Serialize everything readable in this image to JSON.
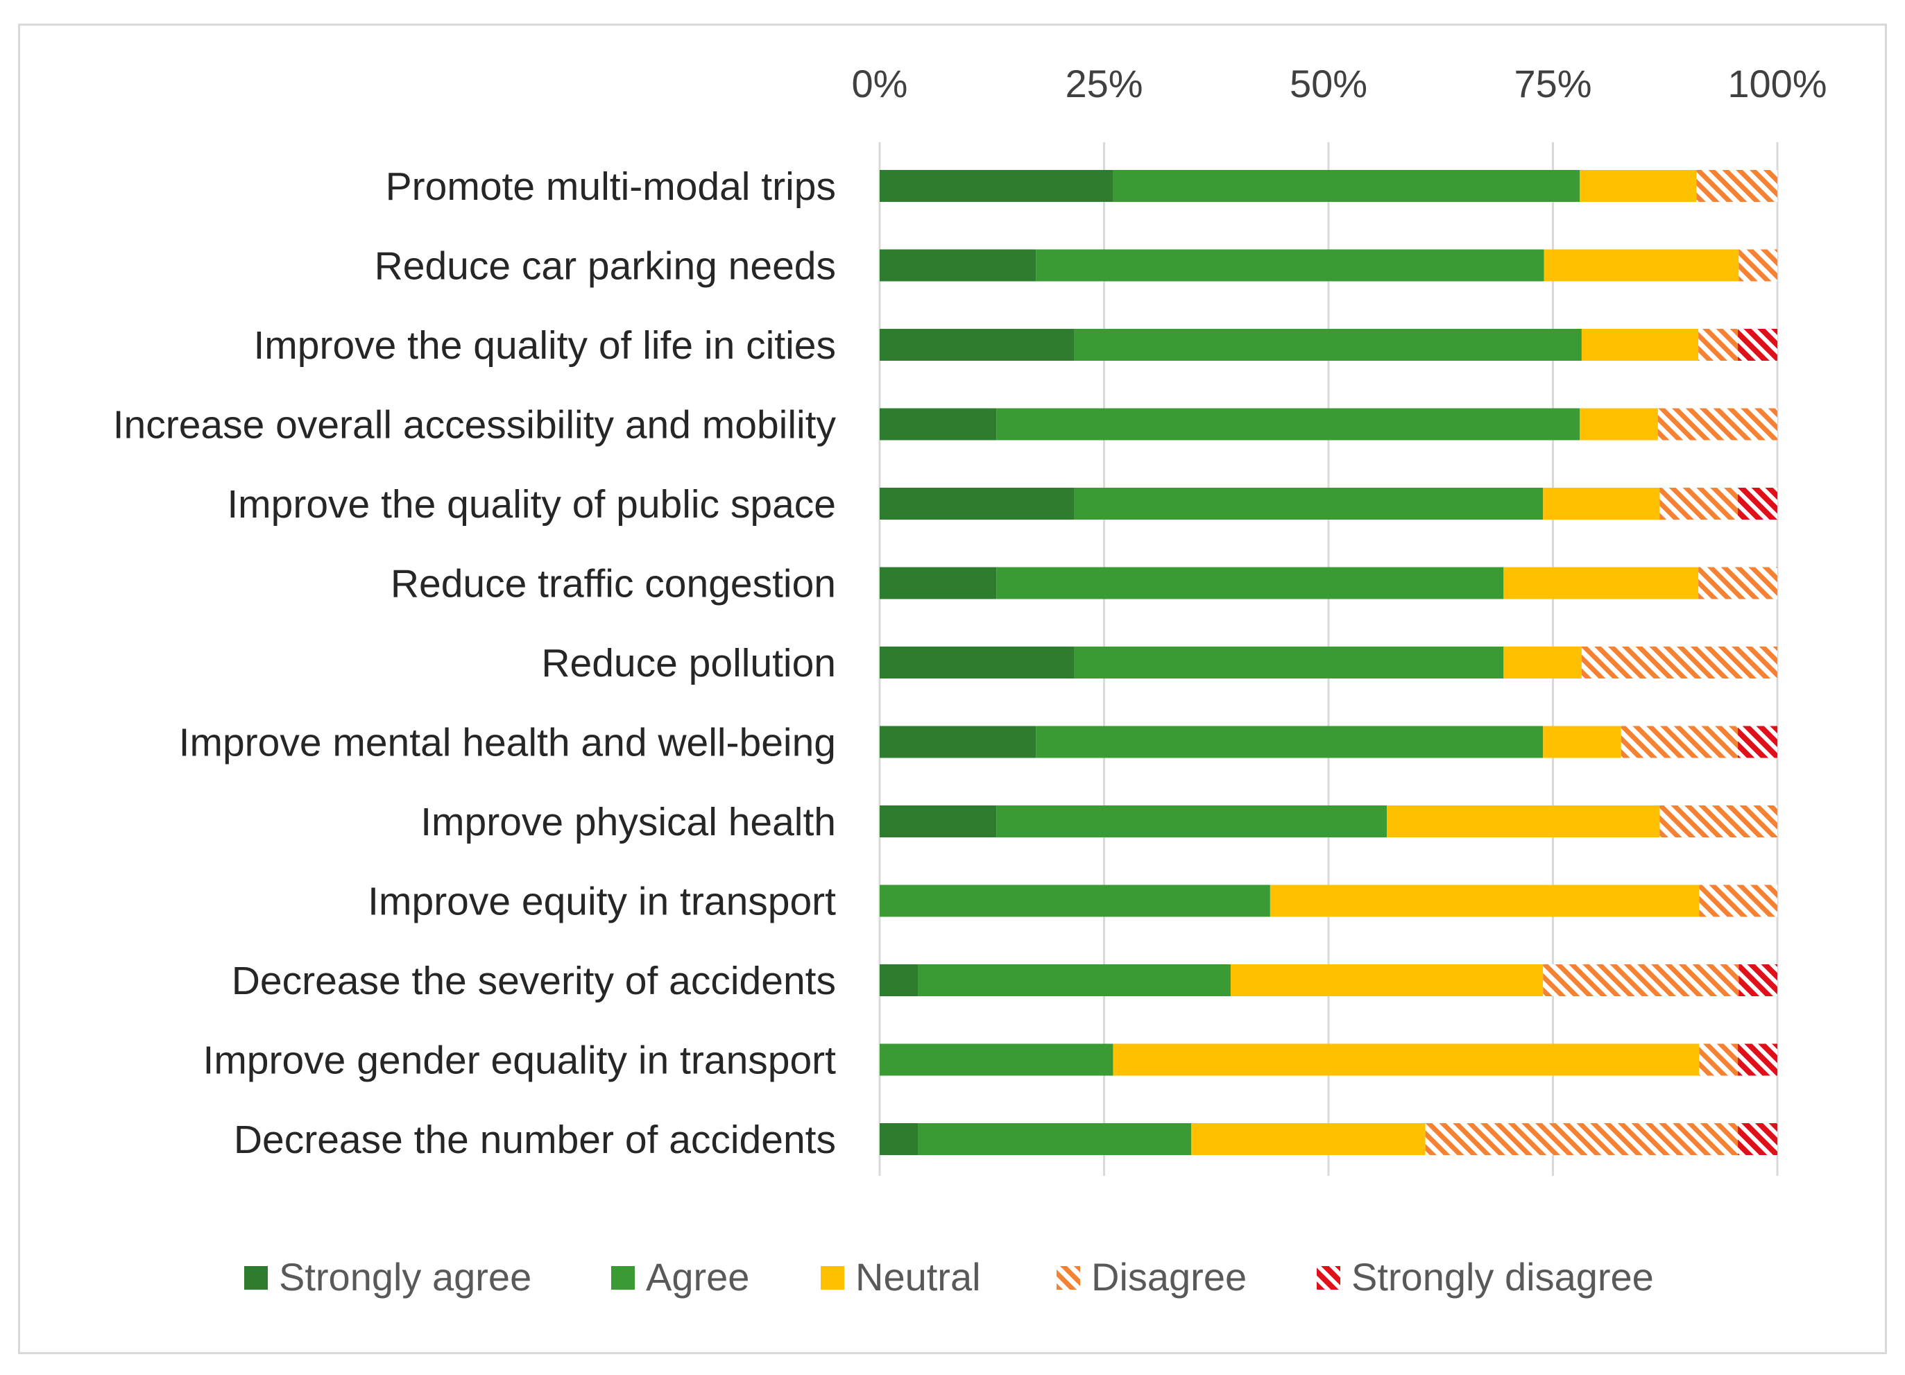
{
  "chart_data": {
    "type": "bar",
    "orientation": "horizontal",
    "stacked": "100%",
    "title": "",
    "xlabel": "",
    "ylabel": "",
    "xlim": [
      0,
      100
    ],
    "xticks": [
      "0%",
      "25%",
      "50%",
      "75%",
      "100%"
    ],
    "grid": true,
    "legend_position": "bottom",
    "categories": [
      "Promote multi-modal trips",
      "Reduce car parking needs",
      "Improve the quality of life in cities",
      "Increase overall accessibility and mobility",
      "Improve the quality of public space",
      "Reduce traffic congestion",
      "Reduce pollution",
      "Improve mental health and well-being",
      "Improve physical health",
      "Improve equity in transport",
      "Decrease the severity of accidents",
      "Improve gender equality in transport",
      "Decrease the number of accidents"
    ],
    "series": [
      {
        "name": "Strongly agree",
        "color": "#2e7d2e",
        "pattern": "solid",
        "values": [
          26,
          17.4,
          21.7,
          13,
          21.7,
          13,
          21.7,
          17.4,
          13,
          0,
          4.3,
          0,
          4.3
        ]
      },
      {
        "name": "Agree",
        "color": "#3a9a34",
        "pattern": "solid",
        "values": [
          52,
          56.6,
          56.5,
          65,
          52.2,
          56.5,
          47.8,
          56.5,
          43.5,
          43.5,
          34.8,
          26,
          30.4
        ]
      },
      {
        "name": "Neutral",
        "color": "#ffc000",
        "pattern": "solid",
        "values": [
          13,
          21.7,
          13,
          8.7,
          13,
          21.7,
          8.7,
          8.7,
          30.4,
          47.8,
          34.8,
          65.3,
          26.1
        ]
      },
      {
        "name": "Disagree",
        "color": "#f58233",
        "pattern": "hatched",
        "values": [
          9,
          4.3,
          4.4,
          13.3,
          8.7,
          8.8,
          21.8,
          13,
          13.1,
          8.7,
          21.8,
          4.3,
          34.8
        ]
      },
      {
        "name": "Strongly disagree",
        "color": "#e0101a",
        "pattern": "hatched",
        "values": [
          0,
          0,
          4.4,
          0,
          4.4,
          0,
          0,
          4.4,
          0,
          0,
          4.3,
          4.4,
          4.4
        ]
      }
    ]
  }
}
